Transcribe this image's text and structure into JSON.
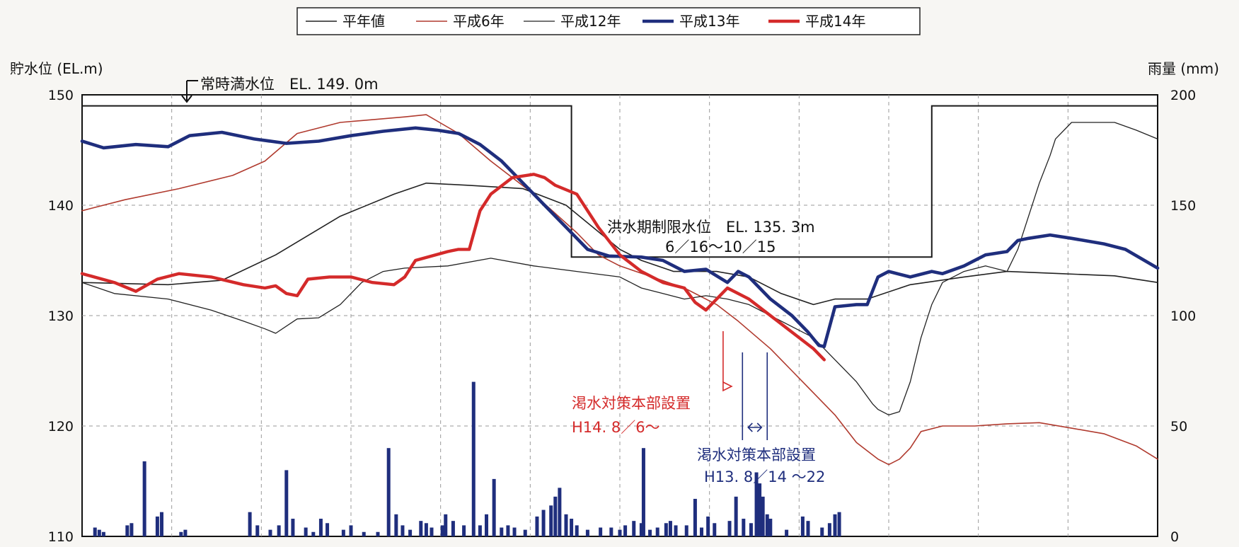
{
  "chart_data": {
    "type": "line",
    "ylabel_left": "貯水位 (EL.m)",
    "ylabel_right": "雨量 (mm)",
    "ylim_left": [
      110,
      150
    ],
    "ylim_right": [
      0,
      200
    ],
    "yticks_left": [
      "150",
      "140",
      "130",
      "120",
      "110"
    ],
    "yticks_right": [
      "200",
      "150",
      "100",
      "50",
      "0"
    ],
    "x_range": [
      0,
      100
    ],
    "grid": "dashed",
    "legend_position": "top",
    "series": [
      {
        "name": "平年値",
        "color": "#222222",
        "width": 1.6,
        "points": [
          [
            0,
            133
          ],
          [
            8,
            132.8
          ],
          [
            13,
            133.2
          ],
          [
            18,
            135.5
          ],
          [
            24,
            139
          ],
          [
            29,
            141
          ],
          [
            32,
            142
          ],
          [
            36,
            141.8
          ],
          [
            41,
            141.5
          ],
          [
            45,
            140
          ],
          [
            50,
            136
          ],
          [
            52,
            135
          ],
          [
            55,
            134
          ],
          [
            59,
            134
          ],
          [
            62,
            133.5
          ],
          [
            65,
            132
          ],
          [
            68,
            131
          ],
          [
            70,
            131.5
          ],
          [
            73,
            131.5
          ],
          [
            77,
            132.8
          ],
          [
            82,
            133.5
          ],
          [
            86,
            134
          ],
          [
            91,
            133.8
          ],
          [
            96,
            133.6
          ],
          [
            100,
            133
          ]
        ]
      },
      {
        "name": "平成6年",
        "color": "#b03a2e",
        "width": 1.6,
        "points": [
          [
            0,
            139.5
          ],
          [
            4,
            140.5
          ],
          [
            9,
            141.5
          ],
          [
            14,
            142.7
          ],
          [
            17,
            144
          ],
          [
            20,
            146.5
          ],
          [
            24,
            147.5
          ],
          [
            30,
            148
          ],
          [
            32,
            148.2
          ],
          [
            35,
            146.5
          ],
          [
            38,
            144
          ],
          [
            42,
            141
          ],
          [
            46,
            137.5
          ],
          [
            48,
            135.5
          ],
          [
            50,
            134.5
          ],
          [
            53,
            133.5
          ],
          [
            56,
            132.5
          ],
          [
            59,
            131
          ],
          [
            61,
            129.5
          ],
          [
            64,
            127
          ],
          [
            66,
            125
          ],
          [
            68,
            123
          ],
          [
            70,
            121
          ],
          [
            72,
            118.5
          ],
          [
            74,
            117
          ],
          [
            75,
            116.5
          ],
          [
            76,
            117
          ],
          [
            77,
            118
          ],
          [
            78,
            119.5
          ],
          [
            80,
            120
          ],
          [
            83,
            120
          ],
          [
            86,
            120.2
          ],
          [
            89,
            120.3
          ],
          [
            92,
            119.8
          ],
          [
            95,
            119.3
          ],
          [
            98,
            118.2
          ],
          [
            100,
            117
          ]
        ]
      },
      {
        "name": "平成12年",
        "color": "#222222",
        "width": 1.3,
        "points": [
          [
            0,
            133
          ],
          [
            3,
            132
          ],
          [
            8,
            131.5
          ],
          [
            12,
            130.5
          ],
          [
            15,
            129.5
          ],
          [
            17,
            128.8
          ],
          [
            18,
            128.4
          ],
          [
            20,
            129.7
          ],
          [
            22,
            129.8
          ],
          [
            24,
            131
          ],
          [
            26,
            133
          ],
          [
            28,
            134
          ],
          [
            30,
            134.3
          ],
          [
            34,
            134.5
          ],
          [
            38,
            135.2
          ],
          [
            42,
            134.5
          ],
          [
            46,
            134
          ],
          [
            50,
            133.5
          ],
          [
            52,
            132.5
          ],
          [
            54,
            132
          ],
          [
            56,
            131.5
          ],
          [
            58,
            131.8
          ],
          [
            60,
            131.5
          ],
          [
            62,
            131
          ],
          [
            64,
            130
          ],
          [
            66,
            129
          ],
          [
            68,
            128
          ],
          [
            70,
            126
          ],
          [
            72,
            124
          ],
          [
            73.5,
            122
          ],
          [
            74,
            121.5
          ],
          [
            75,
            121
          ],
          [
            76,
            121.3
          ],
          [
            77,
            124
          ],
          [
            78,
            128
          ],
          [
            79,
            131
          ],
          [
            80,
            133
          ],
          [
            82,
            134
          ],
          [
            84,
            134.5
          ],
          [
            86,
            134
          ],
          [
            87,
            136
          ],
          [
            88,
            139
          ],
          [
            89,
            142
          ],
          [
            90,
            144.5
          ],
          [
            90.5,
            146
          ],
          [
            92,
            147.5
          ],
          [
            96,
            147.5
          ],
          [
            98,
            146.8
          ],
          [
            100,
            146
          ]
        ]
      },
      {
        "name": "平成13年",
        "color": "#1f2e7d",
        "width": 4.6,
        "points": [
          [
            0,
            145.8
          ],
          [
            2,
            145.2
          ],
          [
            5,
            145.5
          ],
          [
            8,
            145.3
          ],
          [
            10,
            146.3
          ],
          [
            13,
            146.6
          ],
          [
            16,
            146
          ],
          [
            19,
            145.6
          ],
          [
            22,
            145.8
          ],
          [
            25,
            146.3
          ],
          [
            28,
            146.7
          ],
          [
            31,
            147
          ],
          [
            33,
            146.8
          ],
          [
            35,
            146.5
          ],
          [
            37,
            145.5
          ],
          [
            39,
            144
          ],
          [
            41,
            142
          ],
          [
            43,
            140
          ],
          [
            45,
            138
          ],
          [
            47,
            136
          ],
          [
            49,
            135.4
          ],
          [
            52,
            135.3
          ],
          [
            54,
            135
          ],
          [
            56,
            134
          ],
          [
            58,
            134.2
          ],
          [
            60,
            133
          ],
          [
            61,
            134
          ],
          [
            62,
            133.5
          ],
          [
            64,
            131.5
          ],
          [
            66,
            130
          ],
          [
            67.5,
            128.5
          ],
          [
            68.5,
            127.3
          ],
          [
            69,
            127.2
          ],
          [
            70,
            130.8
          ],
          [
            72,
            131
          ],
          [
            73,
            131
          ],
          [
            74,
            133.5
          ],
          [
            75,
            134
          ],
          [
            77,
            133.5
          ],
          [
            79,
            134
          ],
          [
            80,
            133.8
          ],
          [
            82,
            134.5
          ],
          [
            84,
            135.5
          ],
          [
            86,
            135.8
          ],
          [
            87,
            136.8
          ],
          [
            88,
            137
          ],
          [
            90,
            137.3
          ],
          [
            92,
            137
          ],
          [
            95,
            136.5
          ],
          [
            97,
            136
          ],
          [
            100,
            134.3
          ]
        ]
      },
      {
        "name": "平成14年",
        "color": "#d42a2a",
        "width": 4.4,
        "points": [
          [
            0,
            133.8
          ],
          [
            3,
            133
          ],
          [
            5,
            132.2
          ],
          [
            7,
            133.3
          ],
          [
            9,
            133.8
          ],
          [
            12,
            133.5
          ],
          [
            15,
            132.8
          ],
          [
            17,
            132.5
          ],
          [
            18,
            132.7
          ],
          [
            19,
            132
          ],
          [
            20,
            131.8
          ],
          [
            21,
            133.3
          ],
          [
            23,
            133.5
          ],
          [
            25,
            133.5
          ],
          [
            27,
            133
          ],
          [
            29,
            132.8
          ],
          [
            30,
            133.5
          ],
          [
            31,
            135
          ],
          [
            34,
            135.8
          ],
          [
            35,
            136
          ],
          [
            36,
            136
          ],
          [
            37,
            139.5
          ],
          [
            38,
            141
          ],
          [
            40,
            142.5
          ],
          [
            42,
            142.8
          ],
          [
            43,
            142.5
          ],
          [
            44,
            141.8
          ],
          [
            46,
            141
          ],
          [
            48,
            138
          ],
          [
            50,
            135.5
          ],
          [
            52,
            134
          ],
          [
            54,
            133
          ],
          [
            56,
            132.5
          ],
          [
            57,
            131.2
          ],
          [
            58,
            130.5
          ],
          [
            59,
            131.5
          ],
          [
            60,
            132.5
          ],
          [
            62,
            131.5
          ],
          [
            64,
            130
          ],
          [
            66,
            128.5
          ],
          [
            68,
            127
          ],
          [
            69,
            126
          ]
        ]
      }
    ],
    "flood_line": {
      "color": "#1a1a1a",
      "points": [
        [
          0,
          149
        ],
        [
          45.5,
          149
        ],
        [
          45.5,
          135.3
        ],
        [
          79,
          135.3
        ],
        [
          79,
          149
        ],
        [
          100,
          149
        ]
      ]
    },
    "rainfall": {
      "color": "#1f2e7d",
      "bars": [
        [
          1.2,
          4
        ],
        [
          1.6,
          3
        ],
        [
          2,
          2
        ],
        [
          4.2,
          5
        ],
        [
          4.6,
          6
        ],
        [
          5.8,
          34
        ],
        [
          7,
          9
        ],
        [
          7.4,
          11
        ],
        [
          9.2,
          2
        ],
        [
          9.6,
          3
        ],
        [
          15.6,
          11
        ],
        [
          16.3,
          5
        ],
        [
          17.5,
          3
        ],
        [
          18.3,
          5
        ],
        [
          19,
          30
        ],
        [
          19.6,
          8
        ],
        [
          20.8,
          4
        ],
        [
          21.5,
          2
        ],
        [
          22.2,
          8
        ],
        [
          22.8,
          6
        ],
        [
          24.3,
          3
        ],
        [
          25,
          5
        ],
        [
          26.2,
          2
        ],
        [
          27.5,
          2
        ],
        [
          28.5,
          40
        ],
        [
          29.2,
          10
        ],
        [
          29.8,
          5
        ],
        [
          30.5,
          3
        ],
        [
          31.5,
          7
        ],
        [
          32,
          6
        ],
        [
          32.5,
          4
        ],
        [
          33.5,
          5
        ],
        [
          33.8,
          10
        ],
        [
          34.5,
          7
        ],
        [
          35.5,
          5
        ],
        [
          36.4,
          70
        ],
        [
          37,
          5
        ],
        [
          37.6,
          10
        ],
        [
          38.3,
          26
        ],
        [
          39,
          4
        ],
        [
          39.6,
          5
        ],
        [
          40.2,
          4
        ],
        [
          41.2,
          3
        ],
        [
          42.3,
          9
        ],
        [
          42.9,
          12
        ],
        [
          43.6,
          14
        ],
        [
          44,
          18
        ],
        [
          44.4,
          22
        ],
        [
          45,
          10
        ],
        [
          45.5,
          8
        ],
        [
          46,
          5
        ],
        [
          47,
          3
        ],
        [
          48.2,
          4
        ],
        [
          49.2,
          4
        ],
        [
          50,
          3
        ],
        [
          50.5,
          5
        ],
        [
          51.3,
          7
        ],
        [
          52,
          6
        ],
        [
          52.2,
          40
        ],
        [
          52.8,
          3
        ],
        [
          53.5,
          4
        ],
        [
          54.3,
          6
        ],
        [
          54.7,
          7
        ],
        [
          55.2,
          5
        ],
        [
          56.2,
          5
        ],
        [
          57,
          17
        ],
        [
          57.6,
          4
        ],
        [
          58.2,
          9
        ],
        [
          58.8,
          6
        ],
        [
          60.2,
          7
        ],
        [
          60.8,
          18
        ],
        [
          61.5,
          8
        ],
        [
          62.2,
          6
        ],
        [
          62.7,
          29
        ],
        [
          63,
          24
        ],
        [
          63.3,
          18
        ],
        [
          63.7,
          10
        ],
        [
          64,
          8
        ],
        [
          65.5,
          3
        ],
        [
          67,
          9
        ],
        [
          67.5,
          7
        ],
        [
          68.8,
          4
        ],
        [
          69.5,
          6
        ],
        [
          70,
          10
        ],
        [
          70.4,
          11
        ]
      ]
    },
    "annotations": [
      {
        "key": "full",
        "text": "常時満水位　EL. 149. 0m",
        "color": "#111111"
      },
      {
        "key": "flood1",
        "text": "洪水期制限水位　EL. 135. 3m",
        "color": "#111111"
      },
      {
        "key": "flood2",
        "text": "6／16〜10／15",
        "color": "#111111"
      },
      {
        "key": "h14a",
        "text": "渇水対策本部設置",
        "color": "#d42a2a"
      },
      {
        "key": "h14b",
        "text": "H14. 8／6〜",
        "color": "#d42a2a"
      },
      {
        "key": "h13a",
        "text": "渇水対策本部設置",
        "color": "#1f2e7d"
      },
      {
        "key": "h13b",
        "text": "H13. 8／14 〜22",
        "color": "#1f2e7d"
      }
    ],
    "markers": {
      "h14_x": 59.6,
      "h13_start_x": 61.4,
      "h13_end_x": 63.7
    }
  }
}
